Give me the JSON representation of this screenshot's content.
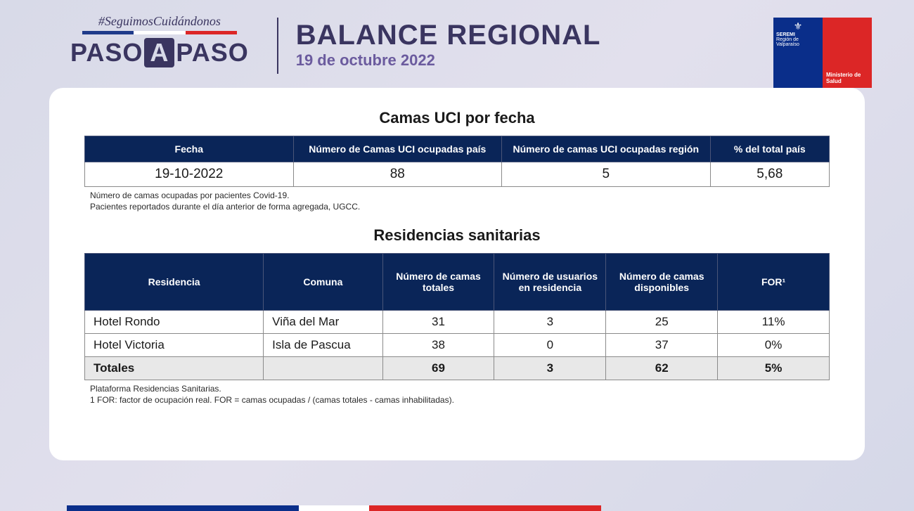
{
  "header": {
    "hashtag": "#SeguimosCuidándonos",
    "logo_text_1": "PASO",
    "logo_text_a": "A",
    "logo_text_2": "PASO",
    "title": "BALANCE REGIONAL",
    "subtitle": "19 de octubre 2022",
    "badge": {
      "seremi": "SEREMI",
      "region": "Región de Valparaíso",
      "ministry": "Ministerio de Salud"
    }
  },
  "section1": {
    "title": "Camas UCI por fecha",
    "columns": [
      "Fecha",
      "Número de Camas UCI ocupadas país",
      "Número de camas UCI ocupadas región",
      "% del total país"
    ],
    "rows": [
      [
        "19-10-2022",
        "88",
        "5",
        "5,68"
      ]
    ],
    "footnote_line1": "Número de camas ocupadas por pacientes Covid-19.",
    "footnote_line2": "Pacientes reportados durante el día anterior de forma agregada, UGCC.",
    "col_widths": [
      "28%",
      "28%",
      "28%",
      "16%"
    ],
    "header_bg": "#0a2558",
    "header_fg": "#ffffff"
  },
  "section2": {
    "title": "Residencias sanitarias",
    "columns": [
      "Residencia",
      "Comuna",
      "Número de camas totales",
      "Número de usuarios en residencia",
      "Número de camas disponibles",
      "FOR¹"
    ],
    "rows": [
      [
        "Hotel Rondo",
        "Viña del Mar",
        "31",
        "3",
        "25",
        "11%"
      ],
      [
        "Hotel Victoria",
        "Isla de Pascua",
        "38",
        "0",
        "37",
        "0%"
      ]
    ],
    "totals": [
      "Totales",
      "",
      "69",
      "3",
      "62",
      "5%"
    ],
    "footnote_line1": "Plataforma Residencias Sanitarias.",
    "footnote_line2": "1 FOR: factor de ocupación real. FOR = camas ocupadas / (camas totales - camas inhabilitadas).",
    "col_widths": [
      "24%",
      "16%",
      "15%",
      "15%",
      "15%",
      "15%"
    ],
    "header_bg": "#0a2558",
    "header_fg": "#ffffff"
  },
  "colors": {
    "bg_gradient_start": "#d8dae8",
    "bg_gradient_end": "#d5d8e8",
    "title_color": "#3a3560",
    "subtitle_color": "#6b5b9e",
    "badge_blue": "#0a2e8a",
    "badge_red": "#dc2626",
    "card_bg": "#ffffff",
    "border_color": "#8a8a8a",
    "totals_bg": "#e8e8e8"
  }
}
